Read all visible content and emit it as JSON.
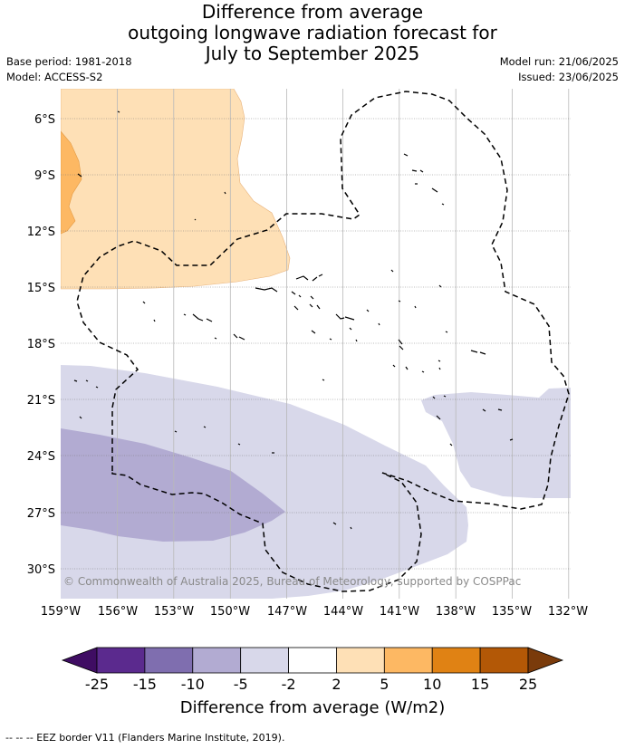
{
  "title": {
    "line1": "Difference from average",
    "line2": "outgoing longwave radiation forecast for",
    "line3": "July to September 2025"
  },
  "meta": {
    "base_period": "Base period: 1981-2018",
    "model": "Model: ACCESS-S2",
    "model_run": "Model run: 21/06/2025",
    "issued": "Issued: 23/06/2025"
  },
  "map": {
    "longitude_ticks": [
      "159°W",
      "156°W",
      "153°W",
      "150°W",
      "147°W",
      "144°W",
      "141°W",
      "138°W",
      "135°W",
      "132°W"
    ],
    "latitude_ticks": [
      "6°S",
      "9°S",
      "12°S",
      "15°S",
      "18°S",
      "21°S",
      "24°S",
      "27°S",
      "30°S"
    ],
    "gridlines": true,
    "copyright": "© Commonwealth of Australia 2025, Bureau of Meteorology, supported by COSPPac"
  },
  "colorbar": {
    "title": "Difference from average (W/m2)",
    "tick_labels": [
      "-25",
      "-15",
      "-10",
      "-5",
      "-2",
      "2",
      "5",
      "10",
      "15",
      "25"
    ],
    "bins": [
      {
        "color": "#3f0d63"
      },
      {
        "color": "#5b2a8e"
      },
      {
        "color": "#7f6eaf"
      },
      {
        "color": "#b2abd2"
      },
      {
        "color": "#d8d8ea"
      },
      {
        "color": "#ffffff"
      },
      {
        "color": "#fee0b6"
      },
      {
        "color": "#fdb863"
      },
      {
        "color": "#e08214"
      },
      {
        "color": "#b35806"
      },
      {
        "color": "#7a3b0b"
      }
    ]
  },
  "footnote": "-- -- -- EEZ border V11 (Flanders Marine Institute, 2019)."
}
